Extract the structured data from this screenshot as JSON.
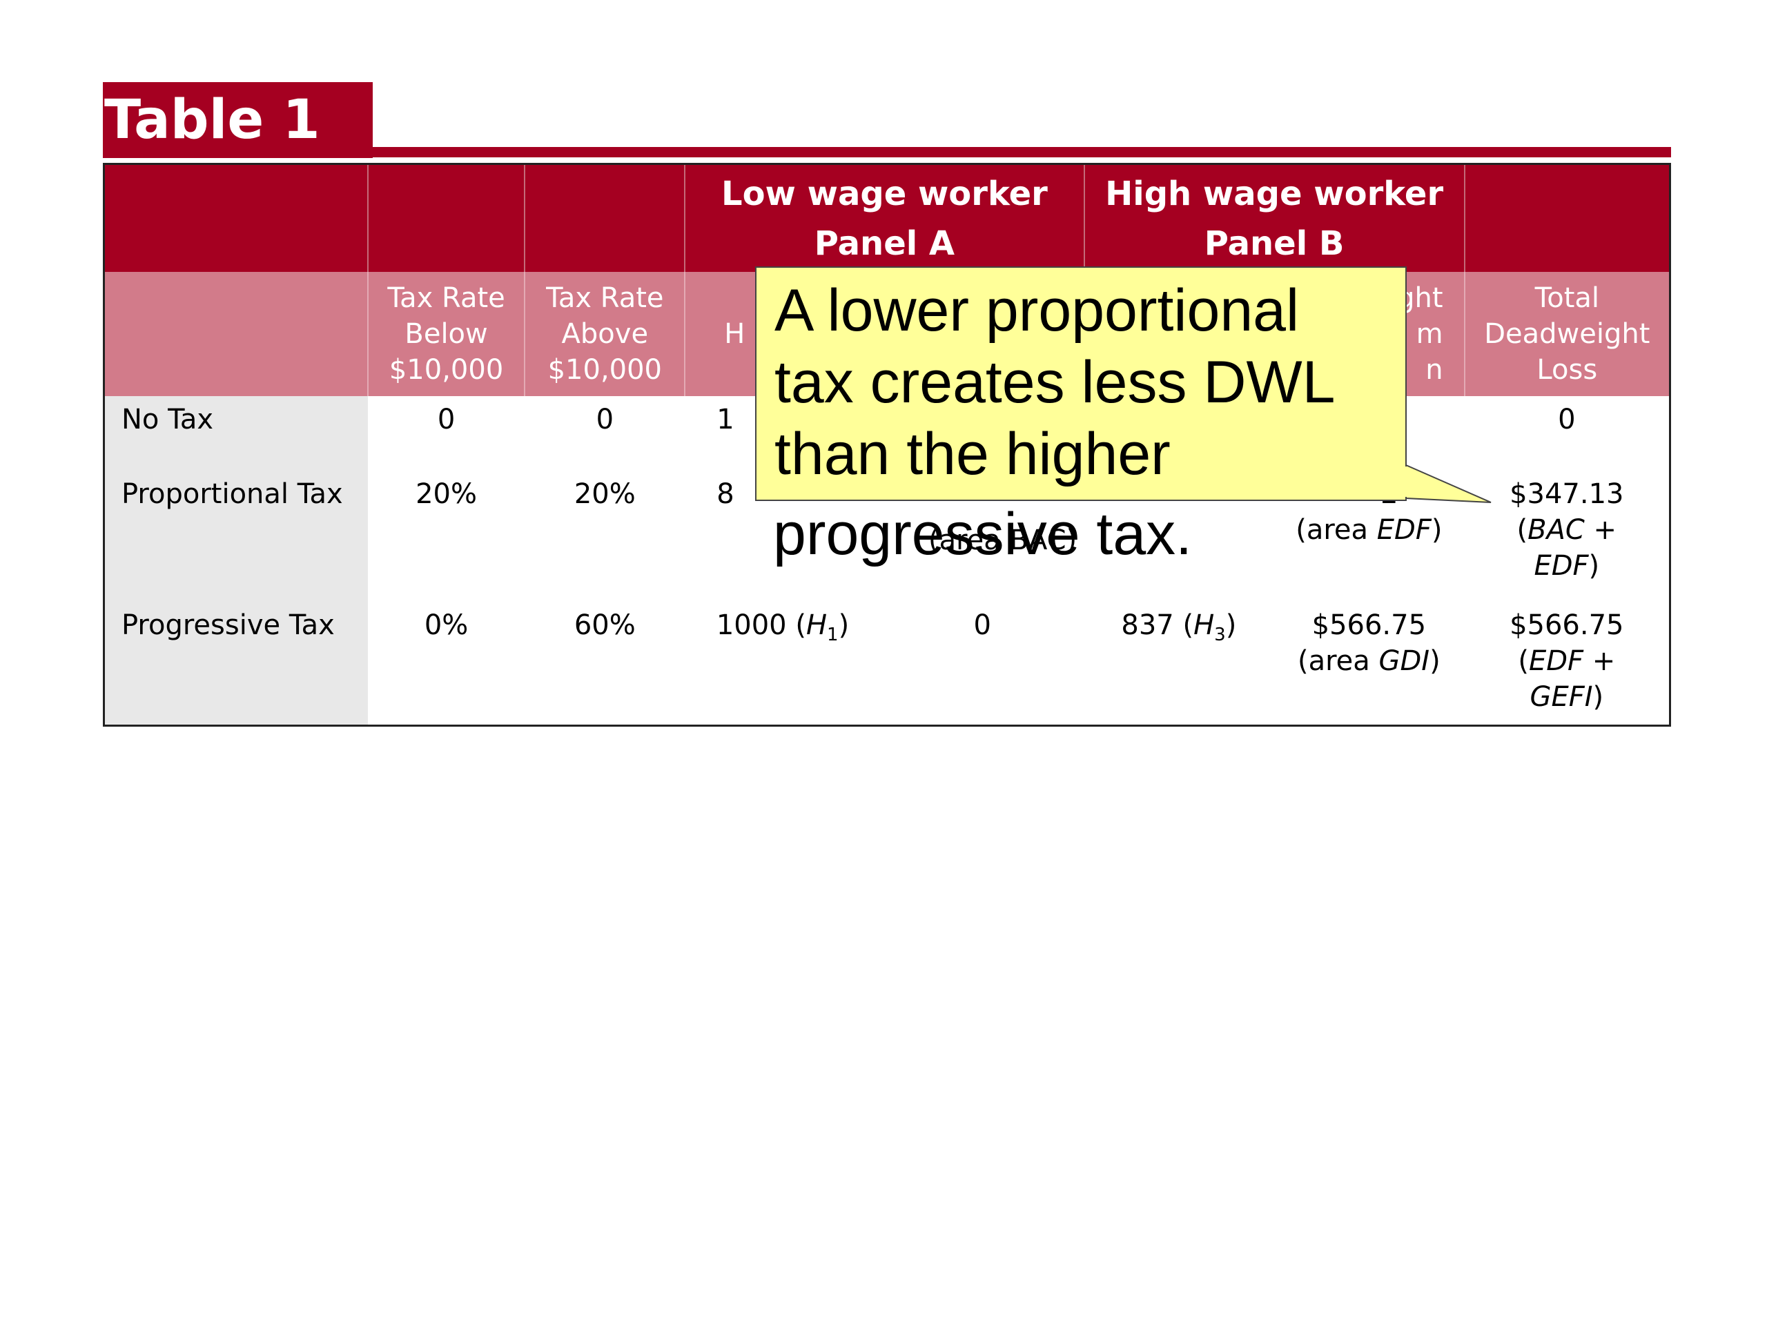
{
  "title": "Table 1",
  "header1": {
    "low": [
      "Low wage worker",
      "Panel A"
    ],
    "high": [
      "High wage worker",
      "Panel B"
    ]
  },
  "header2": {
    "below": [
      "Tax Rate",
      "Below",
      "$10,000"
    ],
    "above": [
      "Tax Rate",
      "Above",
      "$10,000"
    ],
    "low_hours_partial": "H",
    "high_dwl_partial": [
      "ght",
      "m",
      "n"
    ],
    "total": [
      "Total",
      "Deadweight",
      "Loss"
    ]
  },
  "rows": [
    {
      "label": "No Tax",
      "below": "0",
      "above": "0",
      "low_hours_partial": "1",
      "total": "0"
    },
    {
      "label": "Proportional Tax",
      "below": "20%",
      "above": "20%",
      "low_hours_partial": "8",
      "high_dwl_partial": "2",
      "high_dwl_area_prefix": "(area ",
      "high_dwl_area": "EDF",
      "high_dwl_area_suffix": ")",
      "total_value": "$347.13",
      "total_area_1": "BAC",
      "total_area_plus": " +",
      "total_area_2": "EDF",
      "low_dwl_area": "(area BAC)"
    },
    {
      "label": "Progressive Tax",
      "below": "0%",
      "above": "60%",
      "low_hours": "1000 (",
      "low_hours_var": "H",
      "low_hours_sub": "1",
      "low_dwl": "0",
      "high_hours": "837 (",
      "high_hours_var": "H",
      "high_hours_sub": "3",
      "high_dwl": "$566.75",
      "high_dwl_area_prefix": "(area ",
      "high_dwl_area": "GDI",
      "high_dwl_area_suffix": ")",
      "total_value": "$566.75",
      "total_area_1": "EDF",
      "total_area_plus": " +",
      "total_area_2": "GEFI"
    }
  ],
  "callout": {
    "lines": [
      "A lower proportional",
      "tax creates less DWL",
      "than the higher"
    ],
    "overflow": "progressive tax."
  },
  "colors": {
    "header_dark": "#a50021",
    "header_light": "#d27b8a",
    "callout_fill": "#ffff99",
    "row_label_bg": "#e8e8e8"
  }
}
